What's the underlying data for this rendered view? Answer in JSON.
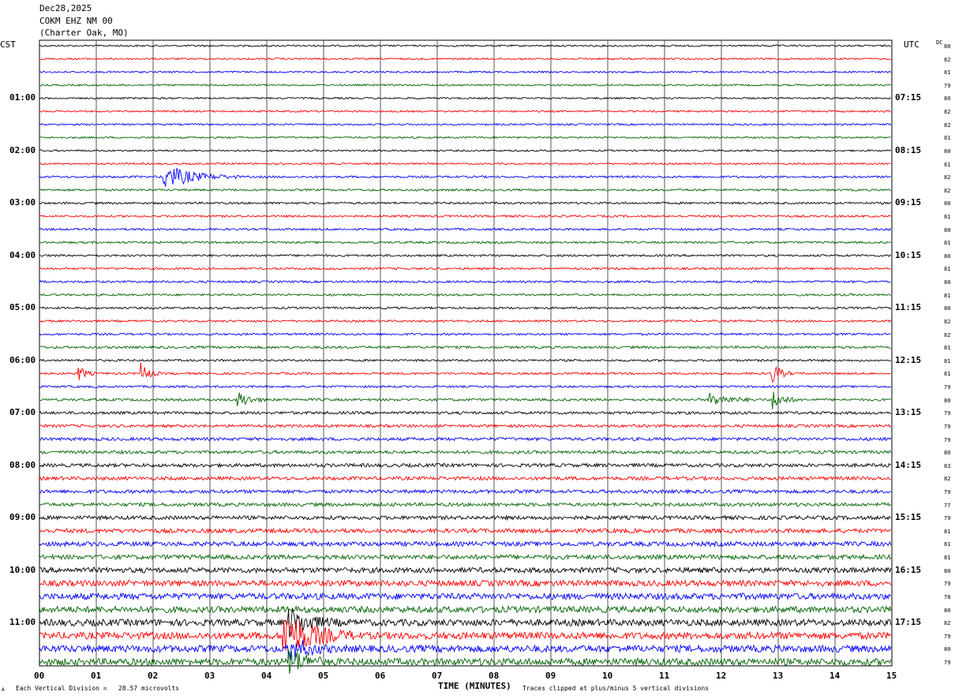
{
  "header": {
    "date": "Dec28,2025",
    "station": "COKM EHZ NM 00",
    "location": "(Charter Oak, MO)"
  },
  "left_axis_label": "CST",
  "right_axis_label": "UTC",
  "dc_label": "DC",
  "x_axis_title": "TIME (MINUTES)",
  "footer": {
    "marker": "A",
    "scale": "Each Vertical Division =   28.57 microvolts",
    "clip": "Traces clipped at plus/minus 5 vertical divisions"
  },
  "colors": {
    "trace_cycle": [
      "#000000",
      "#ff0000",
      "#0000ff",
      "#006400"
    ],
    "grid": "#000000"
  },
  "chart_data": {
    "type": "line",
    "title": "",
    "xlabel": "TIME (MINUTES)",
    "ylabel": "",
    "xlim": [
      0,
      15
    ],
    "x_ticks": [
      "00",
      "01",
      "02",
      "03",
      "04",
      "05",
      "06",
      "07",
      "08",
      "09",
      "10",
      "11",
      "12",
      "13",
      "14",
      "15"
    ],
    "left_hour_labels": [
      "01:00",
      "02:00",
      "03:00",
      "04:00",
      "05:00",
      "06:00",
      "07:00",
      "08:00",
      "09:00",
      "10:00",
      "11:00"
    ],
    "right_hour_labels": [
      "07:15",
      "08:15",
      "09:15",
      "10:15",
      "11:15",
      "12:15",
      "13:15",
      "14:15",
      "15:15",
      "16:15",
      "17:15"
    ],
    "trace_minutes_per_line": 15,
    "trace_count": 48,
    "dc_offsets": [
      80,
      82,
      81,
      79,
      80,
      82,
      82,
      81,
      80,
      81,
      82,
      82,
      80,
      81,
      80,
      81,
      80,
      81,
      80,
      81,
      80,
      82,
      82,
      81,
      81,
      81,
      79,
      80,
      79,
      79,
      79,
      80,
      83,
      82,
      79,
      77,
      79,
      81,
      81,
      81,
      80,
      79,
      78,
      80,
      82,
      79,
      80,
      79
    ],
    "noise_levels": [
      0.5,
      0.5,
      0.5,
      0.5,
      0.5,
      0.5,
      0.5,
      0.5,
      0.5,
      0.5,
      0.6,
      0.6,
      0.6,
      0.6,
      0.6,
      0.6,
      0.6,
      0.6,
      0.6,
      0.6,
      0.6,
      0.6,
      0.6,
      0.7,
      0.6,
      0.6,
      0.6,
      0.7,
      0.8,
      0.8,
      0.9,
      0.9,
      1.0,
      1.0,
      1.0,
      1.0,
      1.1,
      1.2,
      1.3,
      1.3,
      1.5,
      1.7,
      1.8,
      1.8,
      1.9,
      2.0,
      2.0,
      2.0
    ],
    "events": [
      {
        "trace": 10,
        "minute": 2.2,
        "amplitude": 10,
        "duration_min": 1.3
      },
      {
        "trace": 25,
        "minute": 0.7,
        "amplitude": 6,
        "duration_min": 0.3
      },
      {
        "trace": 25,
        "minute": 1.8,
        "amplitude": 8,
        "duration_min": 0.35
      },
      {
        "trace": 25,
        "minute": 12.9,
        "amplitude": 8,
        "duration_min": 0.4
      },
      {
        "trace": 27,
        "minute": 3.5,
        "amplitude": 7,
        "duration_min": 0.5
      },
      {
        "trace": 27,
        "minute": 11.8,
        "amplitude": 5,
        "duration_min": 0.9
      },
      {
        "trace": 27,
        "minute": 12.9,
        "amplitude": 8,
        "duration_min": 0.5
      },
      {
        "trace": 44,
        "minute": 4.4,
        "amplitude": 12,
        "duration_min": 0.9
      },
      {
        "trace": 45,
        "minute": 4.3,
        "amplitude": 20,
        "duration_min": 1.3
      },
      {
        "trace": 46,
        "minute": 4.4,
        "amplitude": 10,
        "duration_min": 0.8
      },
      {
        "trace": 47,
        "minute": 4.4,
        "amplitude": 10,
        "duration_min": 0.8
      }
    ]
  }
}
